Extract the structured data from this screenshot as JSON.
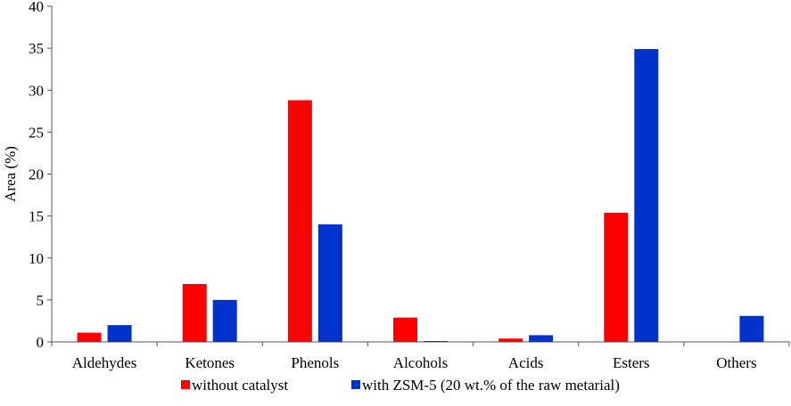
{
  "chart_data": {
    "type": "bar",
    "title": "",
    "xlabel": "",
    "ylabel": "Area (%)",
    "ylim": [
      0,
      40
    ],
    "yticks": [
      0,
      5,
      10,
      15,
      20,
      25,
      30,
      35,
      40
    ],
    "grid": false,
    "legend_position": "bottom",
    "categories": [
      "Aldehydes",
      "Ketones",
      "Phenols",
      "Alcohols",
      "Acids",
      "Esters",
      "Others"
    ],
    "series": [
      {
        "name": "without catalyst",
        "color": "#ff0000",
        "values": [
          1.1,
          6.9,
          28.8,
          2.9,
          0.4,
          15.4,
          0
        ]
      },
      {
        "name": "with ZSM-5 (20 wt.% of the raw metarial)",
        "color": "#0033cc",
        "values": [
          2.0,
          5.0,
          14.0,
          0.1,
          0.8,
          34.9,
          3.1
        ]
      }
    ]
  }
}
